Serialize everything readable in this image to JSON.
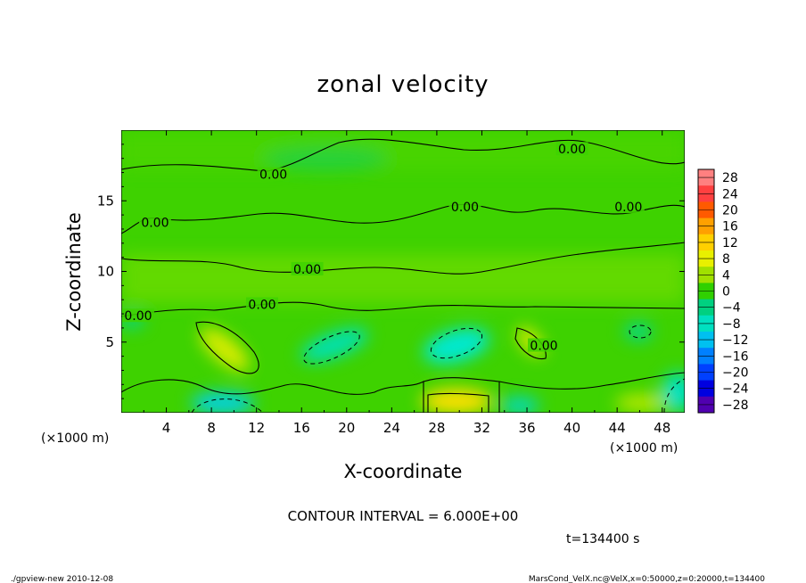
{
  "chart_data": {
    "type": "heatmap",
    "title": "zonal velocity",
    "xlabel": "X-coordinate",
    "ylabel": "Z-coordinate",
    "x_unit": "(×1000 m)",
    "xlim": [
      0,
      50
    ],
    "ylim": [
      0,
      20
    ],
    "x_ticks": [
      4,
      8,
      12,
      16,
      20,
      24,
      28,
      32,
      36,
      40,
      44,
      48
    ],
    "y_ticks": [
      5,
      10,
      15
    ],
    "colorbar_levels": [
      28,
      24,
      20,
      16,
      12,
      8,
      4,
      0,
      -4,
      -8,
      -12,
      -16,
      -20,
      -24,
      -28
    ],
    "colorbar_colors": [
      "#ff8080",
      "#ff4040",
      "#ff5a00",
      "#ffa000",
      "#ffd000",
      "#e8f000",
      "#a0e000",
      "#30d000",
      "#00d080",
      "#00e0c0",
      "#00c0f0",
      "#0080ff",
      "#0040ff",
      "#0000e0",
      "#5000b0"
    ],
    "contour_interval_text": "CONTOUR INTERVAL = 6.000E+00",
    "contour_labels": [
      {
        "text": "0.00",
        "x": 13.5,
        "z": 16.8
      },
      {
        "text": "0.00",
        "x": 3.0,
        "z": 13.4
      },
      {
        "text": "0.00",
        "x": 30.5,
        "z": 14.5
      },
      {
        "text": "0.00",
        "x": 40.0,
        "z": 18.6
      },
      {
        "text": "0.00",
        "x": 45.0,
        "z": 14.5
      },
      {
        "text": "0.00",
        "x": 16.5,
        "z": 10.1
      },
      {
        "text": "0.00",
        "x": 12.5,
        "z": 7.6
      },
      {
        "text": "0.00",
        "x": 1.5,
        "z": 6.8
      },
      {
        "text": "0.00",
        "x": 37.5,
        "z": 4.7
      }
    ],
    "time_text": "t=134400 s"
  },
  "footer": {
    "left": "./gpview-new  2010-12-08",
    "right": "MarsCond_VelX.nc@VelX,x=0:50000,z=0:20000,t=134400"
  }
}
